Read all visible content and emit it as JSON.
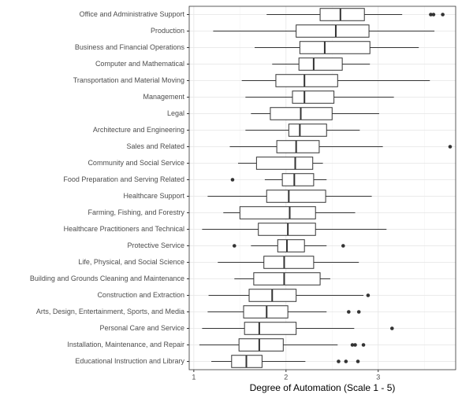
{
  "chart_data": {
    "type": "boxplot",
    "orientation": "horizontal",
    "x_label": "Degree of Automation (Scale 1 - 5)",
    "xlim": [
      0.95,
      3.84
    ],
    "xticks": [
      1,
      2,
      3
    ],
    "x_minor_ticks": [
      1.5,
      2.5,
      3.5
    ],
    "grid": true,
    "categories": [
      "Office and Administrative Support",
      "Production",
      "Business and Financial Operations",
      "Computer and Mathematical",
      "Transportation and Material Moving",
      "Management",
      "Legal",
      "Architecture and Engineering",
      "Sales and Related",
      "Community and Social Service",
      "Food Preparation and Serving Related",
      "Healthcare Support",
      "Farming, Fishing, and Forestry",
      "Healthcare Practitioners and Technical",
      "Protective Service",
      "Life, Physical, and Social Science",
      "Building and Grounds Cleaning and Maintenance",
      "Construction and Extraction",
      "Arts, Design, Entertainment, Sports, and Media",
      "Personal Care and Service",
      "Installation, Maintenance, and Repair",
      "Educational Instruction and Library"
    ],
    "boxes": [
      {
        "min": 1.79,
        "q1": 2.37,
        "median": 2.59,
        "q3": 2.85,
        "max": 3.26,
        "outliers": [
          3.57,
          3.6,
          3.7
        ]
      },
      {
        "min": 1.21,
        "q1": 2.11,
        "median": 2.54,
        "q3": 2.9,
        "max": 3.61,
        "outliers": []
      },
      {
        "min": 1.66,
        "q1": 2.15,
        "median": 2.42,
        "q3": 2.91,
        "max": 3.44,
        "outliers": []
      },
      {
        "min": 1.85,
        "q1": 2.14,
        "median": 2.3,
        "q3": 2.61,
        "max": 2.91,
        "outliers": []
      },
      {
        "min": 1.52,
        "q1": 1.89,
        "median": 2.2,
        "q3": 2.56,
        "max": 3.56,
        "outliers": []
      },
      {
        "min": 1.56,
        "q1": 2.07,
        "median": 2.2,
        "q3": 2.52,
        "max": 3.17,
        "outliers": []
      },
      {
        "min": 1.62,
        "q1": 1.83,
        "median": 2.16,
        "q3": 2.5,
        "max": 3.01,
        "outliers": []
      },
      {
        "min": 1.56,
        "q1": 2.03,
        "median": 2.15,
        "q3": 2.44,
        "max": 2.8,
        "outliers": []
      },
      {
        "min": 1.39,
        "q1": 1.9,
        "median": 2.11,
        "q3": 2.36,
        "max": 3.05,
        "outliers": [
          3.78
        ]
      },
      {
        "min": 1.48,
        "q1": 1.68,
        "median": 2.1,
        "q3": 2.29,
        "max": 2.4,
        "outliers": []
      },
      {
        "min": 1.77,
        "q1": 1.96,
        "median": 2.09,
        "q3": 2.3,
        "max": 2.44,
        "outliers": [
          1.42
        ]
      },
      {
        "min": 1.15,
        "q1": 1.79,
        "median": 2.03,
        "q3": 2.43,
        "max": 2.93,
        "outliers": []
      },
      {
        "min": 1.32,
        "q1": 1.5,
        "median": 2.04,
        "q3": 2.32,
        "max": 2.75,
        "outliers": []
      },
      {
        "min": 1.09,
        "q1": 1.7,
        "median": 2.02,
        "q3": 2.32,
        "max": 3.09,
        "outliers": []
      },
      {
        "min": 1.62,
        "q1": 1.91,
        "median": 2.01,
        "q3": 2.2,
        "max": 2.44,
        "outliers": [
          1.44,
          2.62
        ]
      },
      {
        "min": 1.26,
        "q1": 1.76,
        "median": 1.98,
        "q3": 2.3,
        "max": 2.79,
        "outliers": []
      },
      {
        "min": 1.44,
        "q1": 1.65,
        "median": 1.98,
        "q3": 2.37,
        "max": 2.48,
        "outliers": []
      },
      {
        "min": 1.16,
        "q1": 1.6,
        "median": 1.85,
        "q3": 2.11,
        "max": 2.84,
        "outliers": [
          2.89
        ]
      },
      {
        "min": 1.15,
        "q1": 1.54,
        "median": 1.79,
        "q3": 2.02,
        "max": 2.44,
        "outliers": [
          2.68,
          2.79
        ]
      },
      {
        "min": 1.09,
        "q1": 1.55,
        "median": 1.71,
        "q3": 2.11,
        "max": 2.74,
        "outliers": [
          3.15
        ]
      },
      {
        "min": 1.06,
        "q1": 1.49,
        "median": 1.71,
        "q3": 1.97,
        "max": 2.56,
        "outliers": [
          2.72,
          2.75,
          2.84
        ]
      },
      {
        "min": 1.19,
        "q1": 1.41,
        "median": 1.57,
        "q3": 1.74,
        "max": 2.21,
        "outliers": [
          2.57,
          2.65,
          2.78
        ]
      }
    ]
  }
}
